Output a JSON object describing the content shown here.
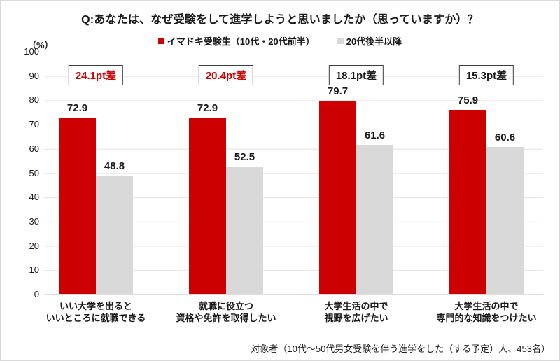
{
  "title": "Q:あなたは、なぜ受験をして進学しようと思いましたか（思っていますか）？",
  "axis_unit": "（%）",
  "footnote": "対象者（10代～50代男女受験を伴う進学をした（する予定）人、453名）",
  "colors": {
    "now_series": "#cc0000",
    "older_series": "#d9d9d9",
    "diff_emphasis": "#cc0000",
    "gridline": "#e2e2e2"
  },
  "chart_data": {
    "type": "bar",
    "title": "Q:あなたは、なぜ受験をして進学しようと思いましたか（思っていますか）？",
    "ylabel": "（%）",
    "ylim": [
      0,
      100
    ],
    "yticks": [
      100,
      90,
      80,
      70,
      60,
      50,
      40,
      30,
      20,
      10,
      0
    ],
    "grid": true,
    "legend_position": "top",
    "categories": [
      "いい大学を出ると いいところに就職できる",
      "就職に役立つ 資格や免許を取得したい",
      "大学生活の中で 視野を広げたい",
      "大学生活の中で 専門的な知識をつけたい"
    ],
    "category_lines": [
      [
        "いい大学を出ると",
        "いいところに就職できる"
      ],
      [
        "就職に役立つ",
        "資格や免許を取得したい"
      ],
      [
        "大学生活の中で",
        "視野を広げたい"
      ],
      [
        "大学生活の中で",
        "専門的な知識をつけたい"
      ]
    ],
    "series": [
      {
        "name": "イマドキ受験生（10代・20代前半）",
        "color": "#cc0000",
        "values": [
          72.9,
          72.9,
          79.7,
          75.9
        ]
      },
      {
        "name": "20代後半以降",
        "color": "#d9d9d9",
        "values": [
          48.8,
          52.5,
          61.6,
          60.6
        ]
      }
    ],
    "diff_labels": [
      {
        "text": "24.1pt差",
        "emphasis": true
      },
      {
        "text": "20.4pt差",
        "emphasis": true
      },
      {
        "text": "18.1pt差",
        "emphasis": false
      },
      {
        "text": "15.3pt差",
        "emphasis": false
      }
    ]
  }
}
